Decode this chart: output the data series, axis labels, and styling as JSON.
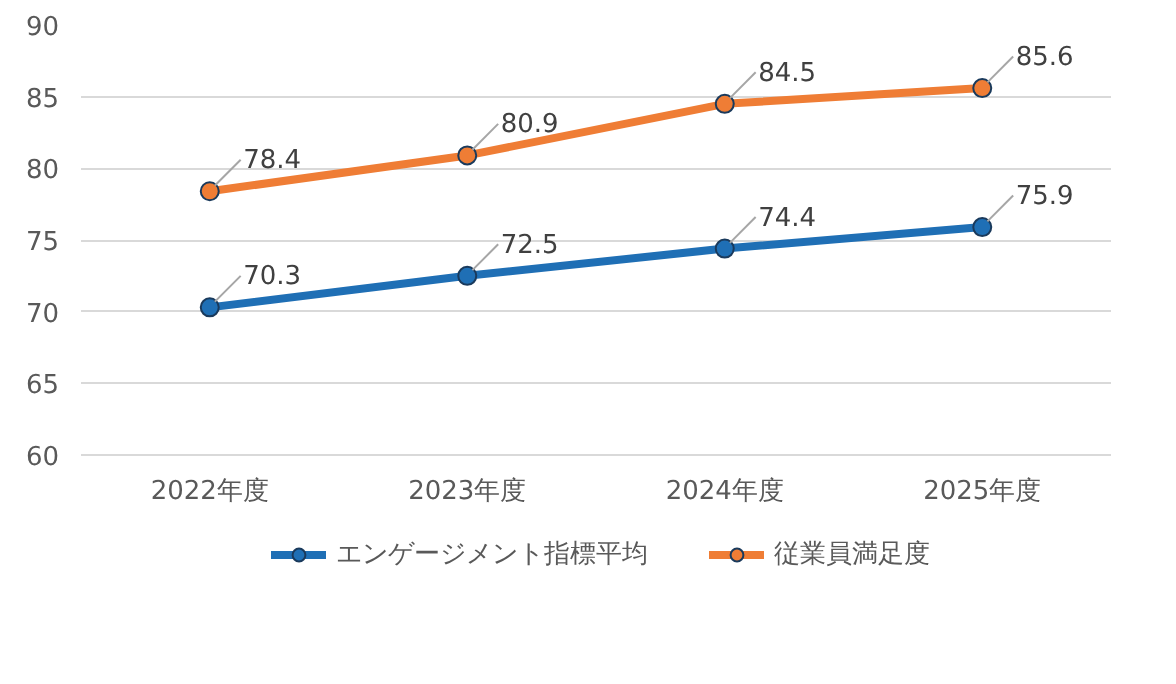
{
  "chart_data": {
    "type": "line",
    "categories": [
      "2022年度",
      "2023年度",
      "2024年度",
      "2025年度"
    ],
    "series": [
      {
        "name": "エンゲージメント指標平均",
        "color": "#1f6fb5",
        "values": [
          70.3,
          72.5,
          74.4,
          75.9
        ]
      },
      {
        "name": "従業員満足度",
        "color": "#ef7d35",
        "values": [
          78.4,
          80.9,
          84.5,
          85.6
        ]
      }
    ],
    "ylim": [
      60,
      90
    ],
    "yticks": [
      60,
      65,
      70,
      75,
      80,
      85,
      90
    ],
    "grid": "y",
    "legend": "bottom",
    "marker": "circle",
    "line_style": "solid",
    "data_labels": true
  }
}
